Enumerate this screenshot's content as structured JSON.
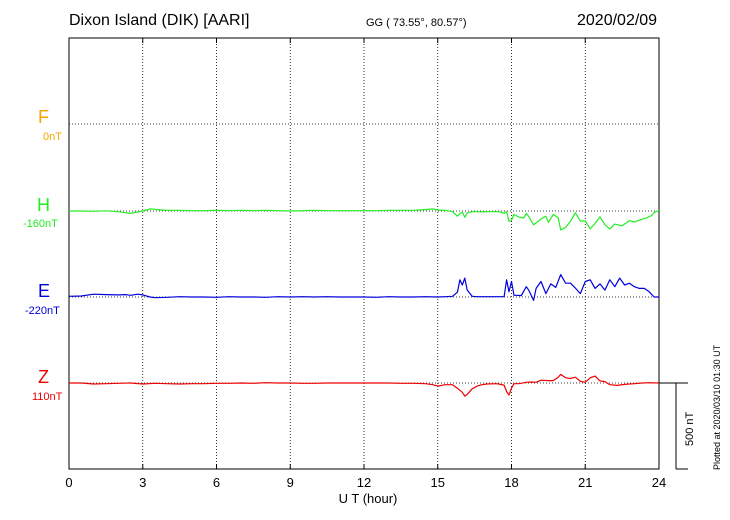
{
  "header": {
    "station": "Dixon Island (DIK)  [AARI]",
    "coords": "GG ( 73.55°,  80.57°)",
    "date": "2020/02/09"
  },
  "footer": {
    "plotted": "Plotted at 2020/03/10 01:30 UT"
  },
  "colors": {
    "F": "#f5a300",
    "H": "#22ee22",
    "E": "#0000dd",
    "Z": "#ee0000"
  },
  "chart_data": {
    "type": "line",
    "title": "Dixon Island (DIK)  [AARI]",
    "xlabel": "U T (hour)",
    "xlim": [
      0,
      24
    ],
    "x_ticks": [
      "0",
      "3",
      "6",
      "9",
      "12",
      "15",
      "18",
      "21",
      "24"
    ],
    "scale_bar": "500 nT",
    "grid": true,
    "components": [
      {
        "name": "F",
        "offset": "0nT"
      },
      {
        "name": "H",
        "offset": "-160nT"
      },
      {
        "name": "E",
        "offset": "-220nT"
      },
      {
        "name": "Z",
        "offset": "110nT"
      }
    ],
    "series": [
      {
        "name": "H",
        "x": [
          0,
          0.5,
          1,
          1.5,
          2,
          2.3,
          2.5,
          2.8,
          3.0,
          3.3,
          3.5,
          3.8,
          4,
          4.5,
          5,
          5.5,
          6,
          6.5,
          7,
          7.5,
          8,
          8.5,
          9,
          9.5,
          10,
          10.5,
          11,
          11.5,
          12,
          12.5,
          13,
          13.5,
          14,
          14.5,
          14.8,
          15,
          15.3,
          15.6,
          15.8,
          15.9,
          16.0,
          16.1,
          16.2,
          16.4,
          16.6,
          16.8,
          17.0,
          17.2,
          17.5,
          17.7,
          17.8,
          17.9,
          18.0,
          18.1,
          18.3,
          18.5,
          18.6,
          18.7,
          18.9,
          19.0,
          19.2,
          19.4,
          19.5,
          19.7,
          19.9,
          20.0,
          20.2,
          20.4,
          20.6,
          20.8,
          21.0,
          21.2,
          21.4,
          21.6,
          21.8,
          22.0,
          22.2,
          22.5,
          22.8,
          23.0,
          23.3,
          23.5,
          23.7,
          23.8,
          24.0
        ],
        "values": [
          0,
          0,
          -2,
          1,
          -4,
          -10,
          -14,
          -6,
          0,
          12,
          10,
          6,
          4,
          4,
          2,
          2,
          4,
          2,
          4,
          2,
          4,
          2,
          0,
          2,
          4,
          2,
          2,
          2,
          2,
          2,
          4,
          4,
          4,
          8,
          12,
          6,
          4,
          -4,
          -30,
          -14,
          -8,
          -36,
          -12,
          -4,
          -4,
          -6,
          -4,
          -4,
          -4,
          -14,
          -4,
          -60,
          -54,
          -20,
          -36,
          -40,
          -14,
          -32,
          -80,
          -70,
          -46,
          -30,
          -66,
          -20,
          -40,
          -110,
          -96,
          -60,
          -10,
          -58,
          -58,
          -104,
          -72,
          -34,
          -80,
          -104,
          -76,
          -86,
          -56,
          -64,
          -48,
          -40,
          -26,
          -10,
          4
        ]
      },
      {
        "name": "E",
        "x": [
          0,
          0.5,
          1,
          1.5,
          2,
          2.3,
          2.5,
          2.8,
          3,
          3.3,
          3.5,
          4,
          4.5,
          5,
          5.5,
          6,
          6.5,
          7,
          7.5,
          8,
          8.5,
          9,
          9.5,
          10,
          10.5,
          11,
          11.5,
          12,
          12.5,
          13,
          13.5,
          14,
          14.5,
          15,
          15.3,
          15.6,
          15.8,
          15.9,
          16.0,
          16.1,
          16.2,
          16.4,
          16.6,
          16.8,
          17.0,
          17.4,
          17.7,
          17.8,
          17.9,
          18.0,
          18.1,
          18.2,
          18.4,
          18.6,
          18.7,
          18.9,
          19.0,
          19.2,
          19.4,
          19.6,
          19.8,
          20.0,
          20.2,
          20.4,
          20.6,
          20.8,
          21.0,
          21.2,
          21.4,
          21.6,
          21.8,
          22.0,
          22.2,
          22.4,
          22.6,
          22.8,
          23.0,
          23.2,
          23.4,
          23.6,
          23.8,
          24.0
        ],
        "values": [
          4,
          6,
          16,
          14,
          12,
          14,
          10,
          16,
          12,
          0,
          -4,
          -2,
          2,
          0,
          0,
          -2,
          2,
          0,
          0,
          -2,
          2,
          0,
          2,
          0,
          2,
          0,
          0,
          0,
          -2,
          2,
          0,
          0,
          2,
          0,
          2,
          4,
          28,
          100,
          70,
          110,
          40,
          4,
          2,
          2,
          2,
          2,
          2,
          100,
          30,
          90,
          10,
          10,
          8,
          60,
          40,
          -20,
          50,
          90,
          20,
          76,
          56,
          130,
          80,
          80,
          52,
          20,
          90,
          100,
          50,
          76,
          40,
          100,
          60,
          110,
          70,
          80,
          60,
          50,
          50,
          30,
          0,
          0
        ]
      },
      {
        "name": "Z",
        "x": [
          0,
          0.5,
          1,
          1.5,
          2,
          2.5,
          3,
          3.5,
          4,
          4.5,
          5,
          5.5,
          6,
          6.5,
          7,
          7.5,
          8,
          8.5,
          9,
          9.5,
          10,
          10.5,
          11,
          11.5,
          12,
          12.5,
          13,
          13.5,
          14,
          14.5,
          14.8,
          15.0,
          15.3,
          15.6,
          15.8,
          16.0,
          16.1,
          16.2,
          16.4,
          16.6,
          16.8,
          17.0,
          17.4,
          17.7,
          17.8,
          17.9,
          18.0,
          18.1,
          18.3,
          18.6,
          18.8,
          19.0,
          19.2,
          19.5,
          19.7,
          19.9,
          20.0,
          20.2,
          20.4,
          20.6,
          20.8,
          21.0,
          21.2,
          21.4,
          21.6,
          21.8,
          22.0,
          22.3,
          22.6,
          23.0,
          23.3,
          23.6,
          24.0
        ],
        "values": [
          0,
          0,
          -6,
          -4,
          -2,
          0,
          -6,
          -2,
          -4,
          -6,
          -4,
          -4,
          -2,
          -2,
          0,
          -2,
          2,
          0,
          0,
          -2,
          -2,
          0,
          0,
          0,
          0,
          0,
          0,
          -2,
          -2,
          -4,
          -10,
          -18,
          -10,
          -10,
          -30,
          -54,
          -76,
          -66,
          -34,
          -18,
          -10,
          -6,
          -4,
          -12,
          -50,
          -70,
          -30,
          -4,
          -4,
          4,
          6,
          4,
          16,
          14,
          14,
          34,
          50,
          30,
          26,
          34,
          10,
          4,
          30,
          40,
          12,
          8,
          -10,
          -14,
          -8,
          -4,
          0,
          2,
          0
        ]
      }
    ]
  }
}
